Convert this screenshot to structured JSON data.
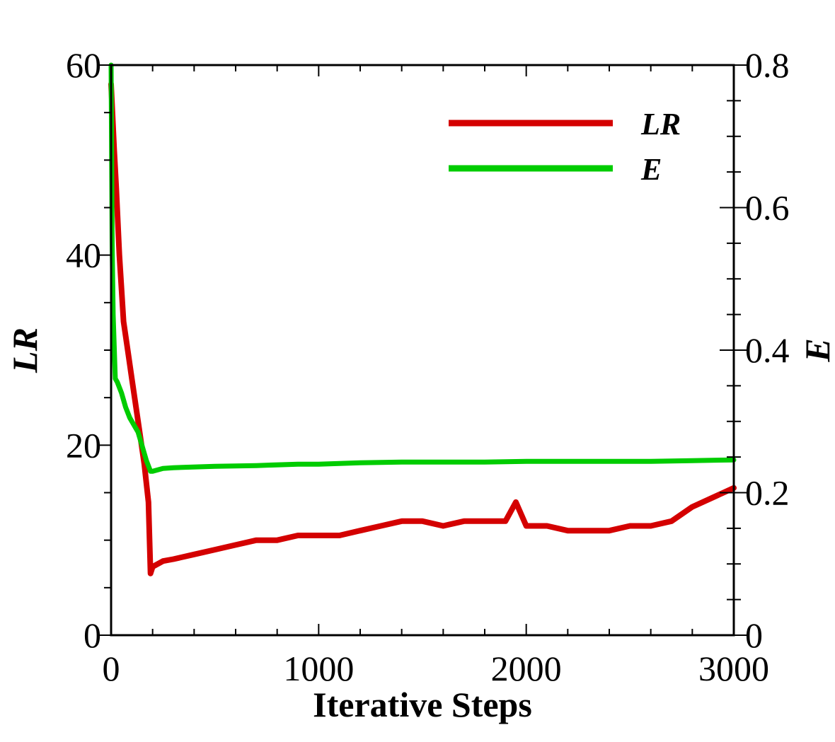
{
  "chart_data": {
    "type": "line",
    "xlabel": "Iterative Steps",
    "ylabel_left": "LR",
    "ylabel_right": "E",
    "xlim": [
      0,
      3000
    ],
    "ylim_left": [
      0,
      60
    ],
    "ylim_right": [
      0,
      0.8
    ],
    "x_ticks": [
      "0",
      "1000",
      "2000",
      "3000"
    ],
    "y_left_ticks": [
      "0",
      "20",
      "40",
      "60"
    ],
    "y_right_ticks": [
      "0",
      "0.2",
      "0.4",
      "0.6",
      "0.8"
    ],
    "grid": false,
    "legend_position": "top-right",
    "series": [
      {
        "name": "LR",
        "axis": "left",
        "color": "#d40000",
        "x": [
          0,
          15,
          25,
          40,
          60,
          80,
          100,
          120,
          140,
          160,
          180,
          190,
          200,
          250,
          300,
          400,
          500,
          600,
          700,
          800,
          900,
          1000,
          1100,
          1200,
          1300,
          1400,
          1500,
          1600,
          1700,
          1800,
          1900,
          1950,
          2000,
          2100,
          2200,
          2300,
          2400,
          2500,
          2600,
          2700,
          2800,
          2900,
          3000
        ],
        "y": [
          58,
          51,
          47,
          40,
          33,
          30,
          27,
          24,
          21,
          18,
          14,
          6.5,
          7.2,
          7.8,
          8,
          8.5,
          9,
          9.5,
          10,
          10,
          10.5,
          10.5,
          10.5,
          11,
          11.5,
          12,
          12,
          11.5,
          12,
          12,
          12,
          14,
          11.5,
          11.5,
          11,
          11,
          11,
          11.5,
          11.5,
          12,
          13.5,
          14.5,
          15.5
        ]
      },
      {
        "name": "E",
        "axis": "right",
        "color": "#00cc00",
        "x": [
          0,
          5,
          10,
          20,
          30,
          50,
          70,
          90,
          110,
          130,
          150,
          170,
          190,
          200,
          250,
          300,
          500,
          700,
          900,
          1000,
          1200,
          1400,
          1600,
          1800,
          2000,
          2200,
          2400,
          2600,
          2800,
          3000
        ],
        "y": [
          0.8,
          0.55,
          0.45,
          0.36,
          0.355,
          0.34,
          0.32,
          0.305,
          0.295,
          0.285,
          0.265,
          0.245,
          0.23,
          0.23,
          0.234,
          0.235,
          0.237,
          0.238,
          0.24,
          0.24,
          0.242,
          0.243,
          0.243,
          0.243,
          0.244,
          0.244,
          0.244,
          0.244,
          0.245,
          0.246
        ]
      }
    ]
  }
}
